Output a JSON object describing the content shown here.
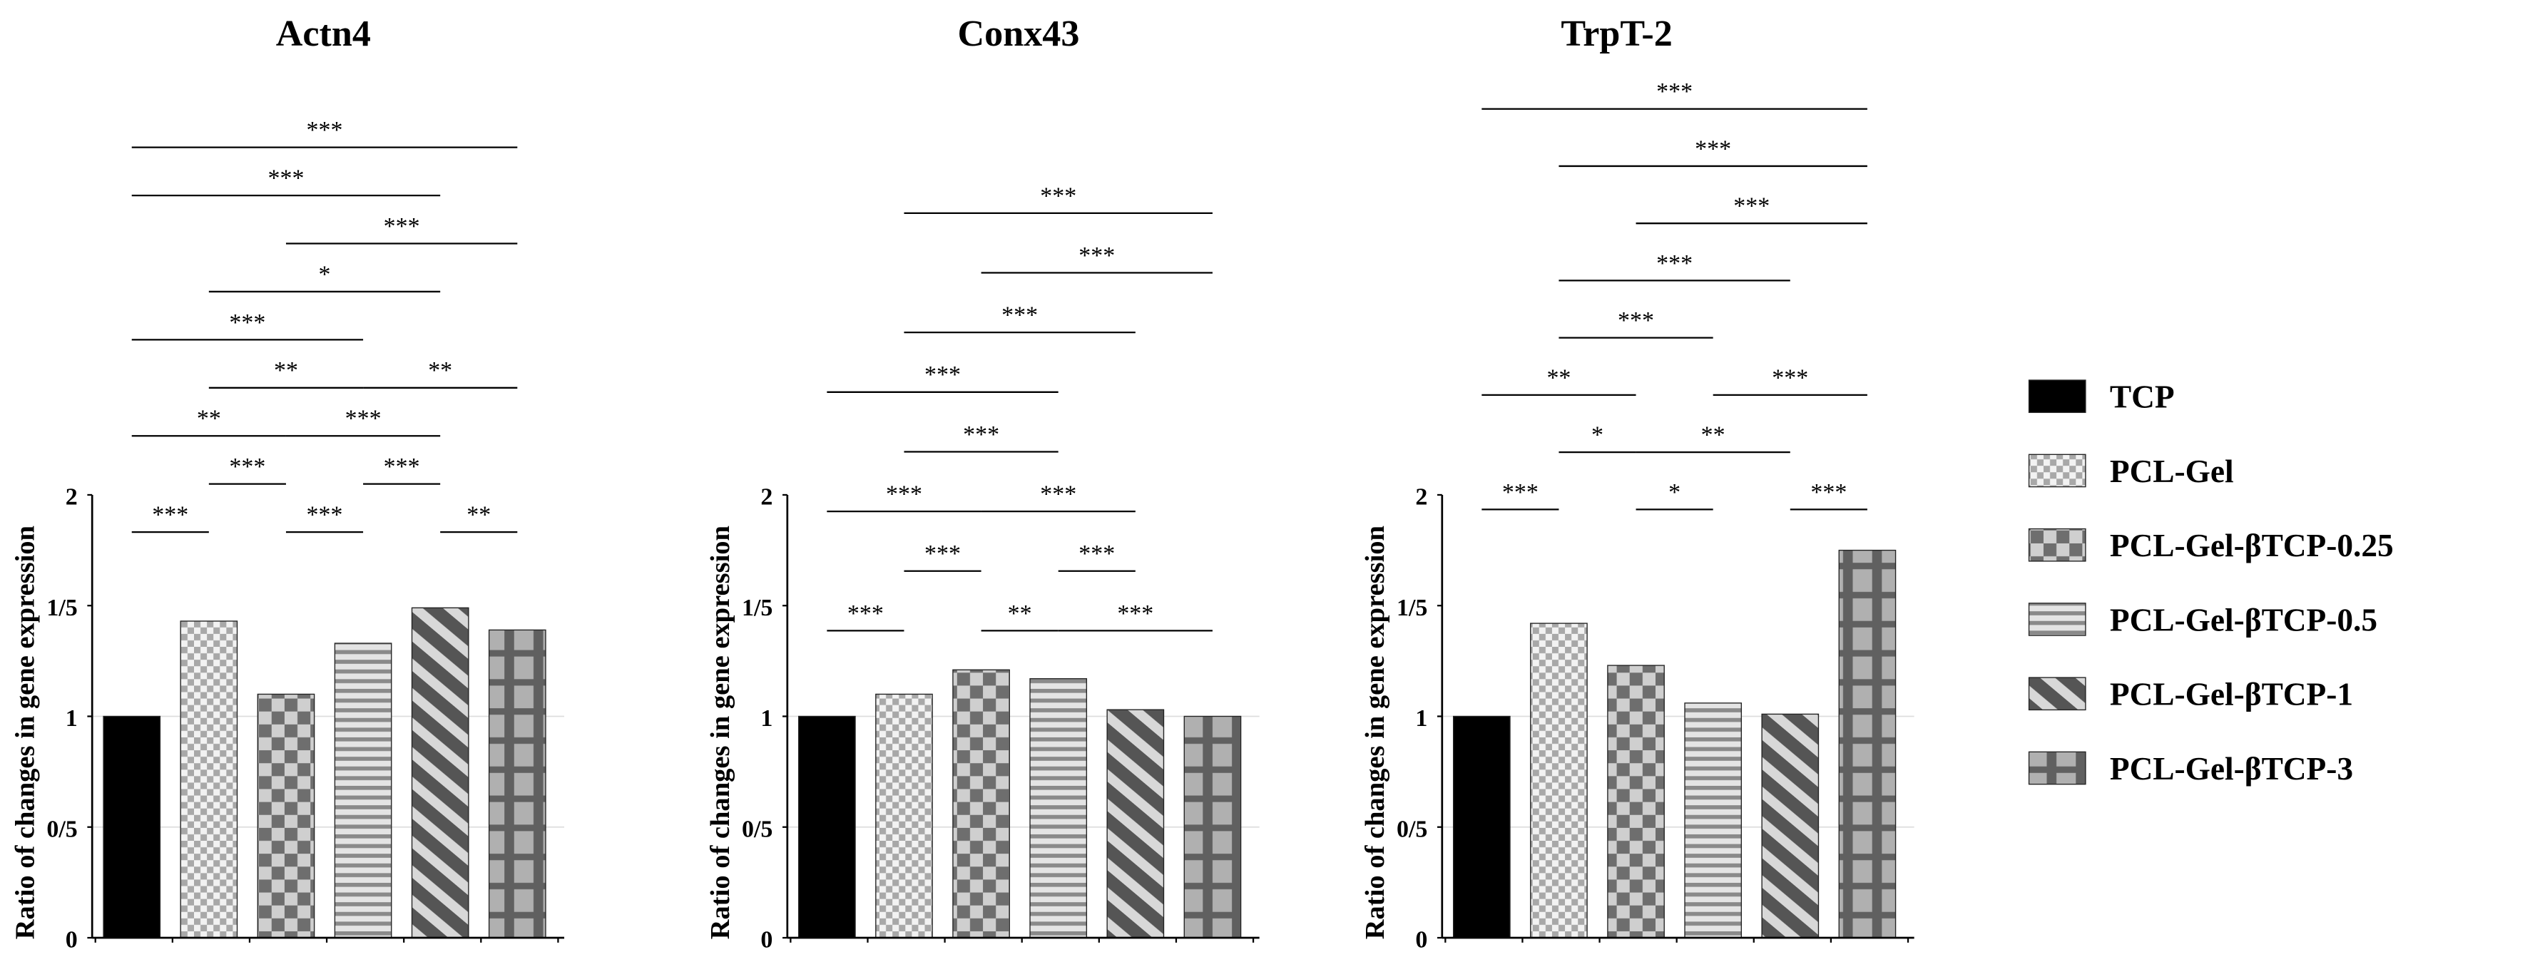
{
  "legend": [
    {
      "name": "TCP",
      "pattern": "solid-black"
    },
    {
      "name": "PCL-Gel",
      "pattern": "fine-checker"
    },
    {
      "name": "PCL-Gel-βTCP-0.25",
      "pattern": "coarse-checker"
    },
    {
      "name": "PCL-Gel-βTCP-0.5",
      "pattern": "horizontal-stripes"
    },
    {
      "name": "PCL-Gel-βTCP-1",
      "pattern": "diagonal-stripes"
    },
    {
      "name": "PCL-Gel-βTCP-3",
      "pattern": "plaid"
    }
  ],
  "chart_data": [
    {
      "type": "bar",
      "title": "Actn4",
      "ylabel": "Ratio of changes in gene expression",
      "ylim": [
        0,
        2
      ],
      "yticks": [
        {
          "v": 0,
          "label": "0"
        },
        {
          "v": 0.5,
          "label": "0/5"
        },
        {
          "v": 1,
          "label": "1"
        },
        {
          "v": 1.5,
          "label": "1/5"
        },
        {
          "v": 2,
          "label": "2"
        }
      ],
      "gridlines": [
        0.5,
        1
      ],
      "values": [
        1.0,
        1.43,
        1.1,
        1.33,
        1.49,
        1.39
      ],
      "significance_rows": [
        [
          {
            "from": 0,
            "to": 5,
            "label": "***"
          }
        ],
        [
          {
            "from": 0,
            "to": 4,
            "label": "***"
          }
        ],
        [
          {
            "from": 2,
            "to": 5,
            "label": "***"
          }
        ],
        [
          {
            "from": 1,
            "to": 4,
            "label": "*"
          }
        ],
        [
          {
            "from": 0,
            "to": 3,
            "label": "***"
          }
        ],
        [
          {
            "from": 1,
            "to": 3,
            "label": "**"
          },
          {
            "from": 3,
            "to": 5,
            "label": "**"
          }
        ],
        [
          {
            "from": 0,
            "to": 2,
            "label": "**"
          },
          {
            "from": 2,
            "to": 4,
            "label": "***"
          }
        ],
        [
          {
            "from": 1,
            "to": 2,
            "label": "***"
          },
          {
            "from": 3,
            "to": 4,
            "label": "***"
          }
        ],
        [
          {
            "from": 0,
            "to": 1,
            "label": "***"
          },
          {
            "from": 2,
            "to": 3,
            "label": "***"
          },
          {
            "from": 4,
            "to": 5,
            "label": "**"
          }
        ]
      ]
    },
    {
      "type": "bar",
      "title": "Conx43",
      "ylabel": "Ratio of changes in gene expression",
      "ylim": [
        0,
        2
      ],
      "yticks": [
        {
          "v": 0,
          "label": "0"
        },
        {
          "v": 0.5,
          "label": "0/5"
        },
        {
          "v": 1,
          "label": "1"
        },
        {
          "v": 1.5,
          "label": "1/5"
        },
        {
          "v": 2,
          "label": "2"
        }
      ],
      "gridlines": [
        0.5,
        1
      ],
      "values": [
        1.0,
        1.1,
        1.21,
        1.17,
        1.03,
        1.0
      ],
      "significance_rows": [
        [
          {
            "from": 1,
            "to": 5,
            "label": "***"
          }
        ],
        [
          {
            "from": 2,
            "to": 5,
            "label": "***"
          }
        ],
        [
          {
            "from": 1,
            "to": 4,
            "label": "***"
          }
        ],
        [
          {
            "from": 0,
            "to": 3,
            "label": "***"
          }
        ],
        [
          {
            "from": 1,
            "to": 3,
            "label": "***"
          }
        ],
        [
          {
            "from": 0,
            "to": 2,
            "label": "***"
          },
          {
            "from": 2,
            "to": 4,
            "label": "***"
          }
        ],
        [
          {
            "from": 1,
            "to": 2,
            "label": "***"
          },
          {
            "from": 3,
            "to": 4,
            "label": "***"
          }
        ],
        [
          {
            "from": 0,
            "to": 1,
            "label": "***"
          },
          {
            "from": 2,
            "to": 3,
            "label": "**"
          },
          {
            "from": 3,
            "to": 5,
            "label": "***"
          }
        ]
      ]
    },
    {
      "type": "bar",
      "title": "TrpT-2",
      "ylabel": "Ratio of changes in gene expression",
      "ylim": [
        0,
        2
      ],
      "yticks": [
        {
          "v": 0,
          "label": "0"
        },
        {
          "v": 0.5,
          "label": "0/5"
        },
        {
          "v": 1,
          "label": "1"
        },
        {
          "v": 1.5,
          "label": "1/5"
        },
        {
          "v": 2,
          "label": "2"
        }
      ],
      "gridlines": [
        0.5,
        1
      ],
      "values": [
        1.0,
        1.42,
        1.23,
        1.06,
        1.01,
        1.75
      ],
      "significance_rows": [
        [
          {
            "from": 0,
            "to": 5,
            "label": "***"
          }
        ],
        [
          {
            "from": 1,
            "to": 5,
            "label": "***"
          }
        ],
        [
          {
            "from": 2,
            "to": 5,
            "label": "***"
          }
        ],
        [
          {
            "from": 1,
            "to": 4,
            "label": "***"
          }
        ],
        [
          {
            "from": 1,
            "to": 3,
            "label": "***"
          }
        ],
        [
          {
            "from": 0,
            "to": 2,
            "label": "**"
          },
          {
            "from": 3,
            "to": 5,
            "label": "***"
          }
        ],
        [
          {
            "from": 1,
            "to": 2,
            "label": "*"
          },
          {
            "from": 2,
            "to": 4,
            "label": "**"
          }
        ],
        [
          {
            "from": 0,
            "to": 1,
            "label": "***"
          },
          {
            "from": 2,
            "to": 3,
            "label": "*"
          },
          {
            "from": 4,
            "to": 5,
            "label": "***"
          }
        ]
      ]
    }
  ]
}
